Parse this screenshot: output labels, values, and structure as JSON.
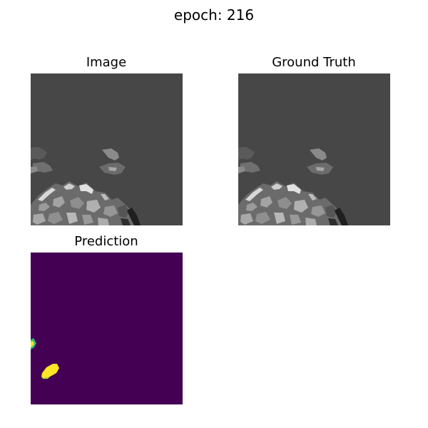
{
  "figure": {
    "title": "epoch: 216"
  },
  "panels": [
    {
      "id": "image",
      "title": "Image"
    },
    {
      "id": "ground_truth",
      "title": "Ground Truth"
    },
    {
      "id": "prediction",
      "title": "Prediction"
    }
  ],
  "colors": {
    "mri_background": "#474747",
    "mri_tissue_bright": "#d8d8d8",
    "mri_tissue_mid": "#9a9a9a",
    "mri_tissue_dark": "#1f1f1f",
    "prediction_background": "#440154",
    "prediction_foreground": "#fde725",
    "prediction_edge": "#35b779"
  }
}
